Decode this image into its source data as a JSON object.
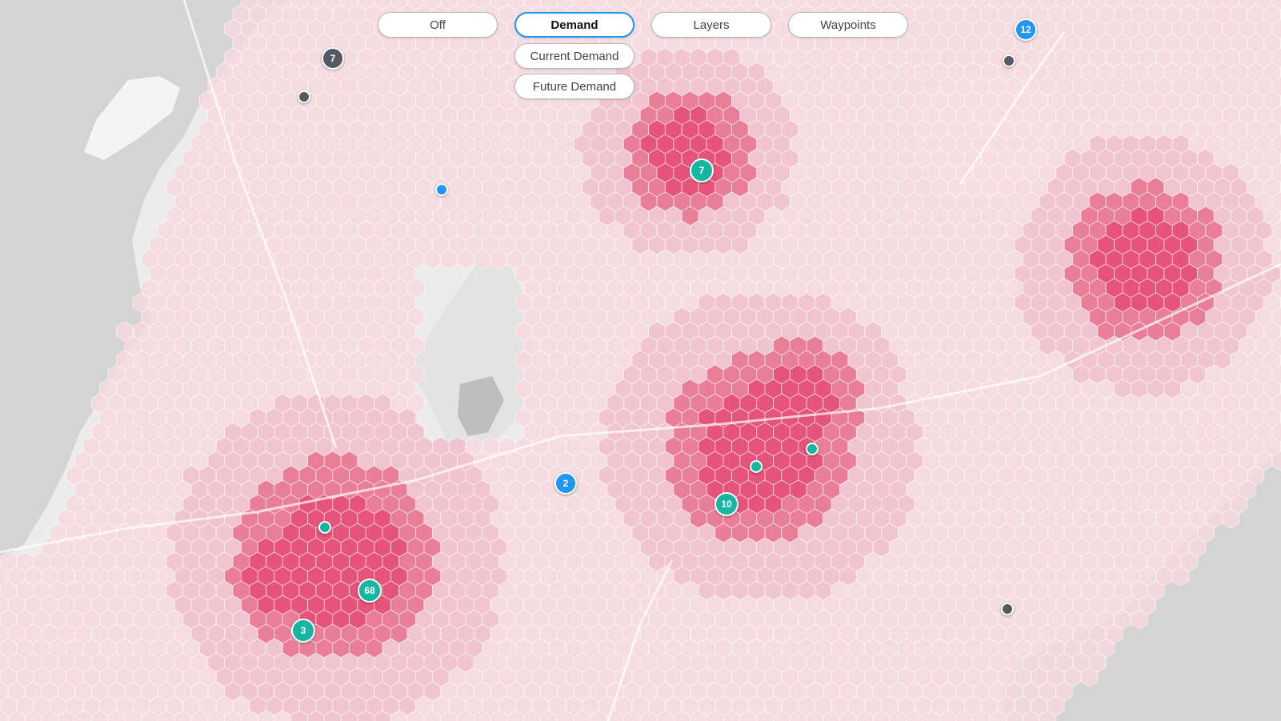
{
  "map": {
    "land_color": "#ececec",
    "water_color": "#d3d3d3",
    "street_color": "#ffffff",
    "hex_colors": {
      "level_1": "#f7d8de",
      "level_2": "#f2b8c5",
      "level_3": "#e86b8a",
      "level_4": "#e65479"
    }
  },
  "toolbar": {
    "off_label": "Off",
    "demand_label": "Demand",
    "layers_label": "Layers",
    "waypoints_label": "Waypoints",
    "active_color": "#2196f3"
  },
  "demand_menu": {
    "current_label": "Current Demand",
    "future_label": "Future Demand"
  },
  "markers": {
    "blue_12": "12",
    "blue_2": "2",
    "teal_7": "7",
    "teal_10": "10",
    "teal_68": "68",
    "teal_3": "3",
    "grey_7": "7",
    "colors": {
      "blue": "#2196f3",
      "teal": "#17b6a2",
      "grey": "#555a62"
    }
  }
}
